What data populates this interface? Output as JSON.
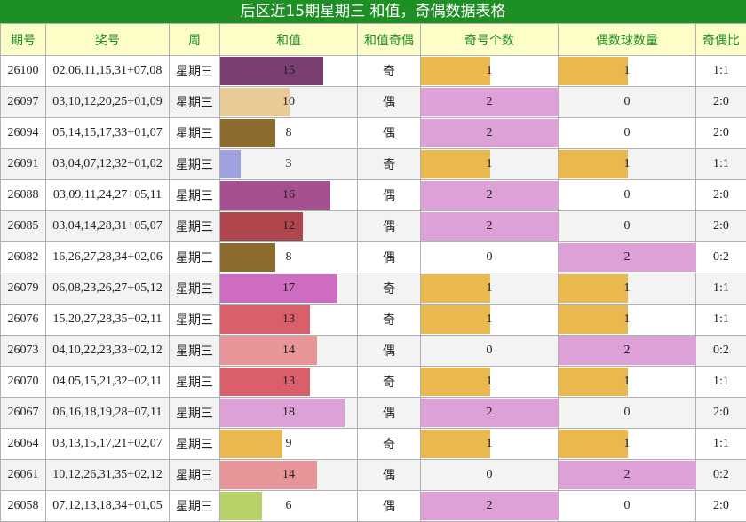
{
  "title": "后区近15期星期三 和值，奇偶数据表格",
  "headers": [
    "期号",
    "奖号",
    "周",
    "和值",
    "和值奇偶",
    "奇号个数",
    "偶数球数量",
    "奇偶比"
  ],
  "colors": {
    "title_bg": "#1e8f25",
    "header_bg": "#fdfdc8",
    "header_text": "#1e8f25",
    "count_odd_fill": "#e9b84f",
    "count_even_fill": "#dda0d7"
  },
  "sum_colors": {
    "3": "#a0a2e0",
    "6": "#b8d26a",
    "8": "#8b6b2e",
    "9": "#e9b84f",
    "10": "#e8cb96",
    "12": "#b0454e",
    "13": "#d9606a",
    "14": "#e8959a",
    "15": "#7a3e70",
    "16": "#a64f91",
    "17": "#cd6cc0",
    "18": "#dda0d7"
  },
  "chart_data": {
    "type": "table",
    "title": "后区近15期星期三 和值，奇偶数据表格",
    "sum_max": 20,
    "count_max": 2,
    "rows": [
      {
        "issue": "26100",
        "numbers": "02,06,11,15,31+07,08",
        "weekday": "星期三",
        "sum": 15,
        "sum_parity": "奇",
        "odd_count": 1,
        "even_count": 1,
        "ratio": "1:1"
      },
      {
        "issue": "26097",
        "numbers": "03,10,12,20,25+01,09",
        "weekday": "星期三",
        "sum": 10,
        "sum_parity": "偶",
        "odd_count": 2,
        "even_count": 0,
        "ratio": "2:0"
      },
      {
        "issue": "26094",
        "numbers": "05,14,15,17,33+01,07",
        "weekday": "星期三",
        "sum": 8,
        "sum_parity": "偶",
        "odd_count": 2,
        "even_count": 0,
        "ratio": "2:0"
      },
      {
        "issue": "26091",
        "numbers": "03,04,07,12,32+01,02",
        "weekday": "星期三",
        "sum": 3,
        "sum_parity": "奇",
        "odd_count": 1,
        "even_count": 1,
        "ratio": "1:1"
      },
      {
        "issue": "26088",
        "numbers": "03,09,11,24,27+05,11",
        "weekday": "星期三",
        "sum": 16,
        "sum_parity": "偶",
        "odd_count": 2,
        "even_count": 0,
        "ratio": "2:0"
      },
      {
        "issue": "26085",
        "numbers": "03,04,14,28,31+05,07",
        "weekday": "星期三",
        "sum": 12,
        "sum_parity": "偶",
        "odd_count": 2,
        "even_count": 0,
        "ratio": "2:0"
      },
      {
        "issue": "26082",
        "numbers": "16,26,27,28,34+02,06",
        "weekday": "星期三",
        "sum": 8,
        "sum_parity": "偶",
        "odd_count": 0,
        "even_count": 2,
        "ratio": "0:2"
      },
      {
        "issue": "26079",
        "numbers": "06,08,23,26,27+05,12",
        "weekday": "星期三",
        "sum": 17,
        "sum_parity": "奇",
        "odd_count": 1,
        "even_count": 1,
        "ratio": "1:1"
      },
      {
        "issue": "26076",
        "numbers": "15,20,27,28,35+02,11",
        "weekday": "星期三",
        "sum": 13,
        "sum_parity": "奇",
        "odd_count": 1,
        "even_count": 1,
        "ratio": "1:1"
      },
      {
        "issue": "26073",
        "numbers": "04,10,22,23,33+02,12",
        "weekday": "星期三",
        "sum": 14,
        "sum_parity": "偶",
        "odd_count": 0,
        "even_count": 2,
        "ratio": "0:2"
      },
      {
        "issue": "26070",
        "numbers": "04,05,15,21,32+02,11",
        "weekday": "星期三",
        "sum": 13,
        "sum_parity": "奇",
        "odd_count": 1,
        "even_count": 1,
        "ratio": "1:1"
      },
      {
        "issue": "26067",
        "numbers": "06,16,18,19,28+07,11",
        "weekday": "星期三",
        "sum": 18,
        "sum_parity": "偶",
        "odd_count": 2,
        "even_count": 0,
        "ratio": "2:0"
      },
      {
        "issue": "26064",
        "numbers": "03,13,15,17,21+02,07",
        "weekday": "星期三",
        "sum": 9,
        "sum_parity": "奇",
        "odd_count": 1,
        "even_count": 1,
        "ratio": "1:1"
      },
      {
        "issue": "26061",
        "numbers": "10,12,26,31,35+02,12",
        "weekday": "星期三",
        "sum": 14,
        "sum_parity": "偶",
        "odd_count": 0,
        "even_count": 2,
        "ratio": "0:2"
      },
      {
        "issue": "26058",
        "numbers": "07,12,13,18,34+01,05",
        "weekday": "星期三",
        "sum": 6,
        "sum_parity": "偶",
        "odd_count": 2,
        "even_count": 0,
        "ratio": "2:0"
      }
    ]
  }
}
